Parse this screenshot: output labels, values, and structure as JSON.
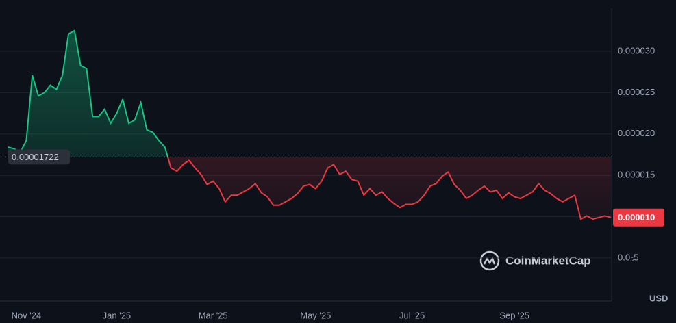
{
  "chart_data": {
    "type": "line",
    "categories": [
      null,
      null,
      null,
      "Nov '24",
      null,
      null,
      null,
      null,
      null,
      null,
      null,
      null,
      null,
      null,
      null,
      null,
      null,
      null,
      "Jan '25",
      null,
      null,
      null,
      null,
      null,
      null,
      null,
      null,
      null,
      null,
      null,
      null,
      null,
      null,
      null,
      "Mar '25",
      null,
      null,
      null,
      null,
      null,
      null,
      null,
      null,
      null,
      null,
      null,
      null,
      null,
      null,
      null,
      null,
      "May '25",
      null,
      null,
      null,
      null,
      null,
      null,
      null,
      null,
      null,
      null,
      null,
      null,
      null,
      null,
      null,
      "Jul '25",
      null,
      null,
      null,
      null,
      null,
      null,
      null,
      null,
      null,
      null,
      null,
      null,
      null,
      null,
      null,
      null,
      "Sep '25",
      null,
      null,
      null,
      null,
      null,
      null,
      null,
      null,
      null,
      null,
      null,
      null,
      null,
      null,
      null,
      null
    ],
    "values": [
      1.84e-05,
      1.82e-05,
      1.78e-05,
      1.92e-05,
      2.71e-05,
      2.46e-05,
      2.5e-05,
      2.59e-05,
      2.54e-05,
      2.71e-05,
      3.21e-05,
      3.25e-05,
      2.83e-05,
      2.79e-05,
      2.21e-05,
      2.21e-05,
      2.3e-05,
      2.13e-05,
      2.25e-05,
      2.42e-05,
      2.13e-05,
      2.17e-05,
      2.38e-05,
      2.05e-05,
      2.02e-05,
      1.92e-05,
      1.84e-05,
      1.59e-05,
      1.55e-05,
      1.63e-05,
      1.68e-05,
      1.59e-05,
      1.51e-05,
      1.39e-05,
      1.43e-05,
      1.34e-05,
      1.18e-05,
      1.26e-05,
      1.26e-05,
      1.3e-05,
      1.34e-05,
      1.4e-05,
      1.29e-05,
      1.24e-05,
      1.14e-05,
      1.14e-05,
      1.18e-05,
      1.22e-05,
      1.28e-05,
      1.37e-05,
      1.39e-05,
      1.34e-05,
      1.43e-05,
      1.59e-05,
      1.63e-05,
      1.51e-05,
      1.55e-05,
      1.45e-05,
      1.43e-05,
      1.26e-05,
      1.34e-05,
      1.26e-05,
      1.3e-05,
      1.22e-05,
      1.16e-05,
      1.11e-05,
      1.15e-05,
      1.15e-05,
      1.18e-05,
      1.26e-05,
      1.37e-05,
      1.4e-05,
      1.49e-05,
      1.54e-05,
      1.39e-05,
      1.32e-05,
      1.22e-05,
      1.26e-05,
      1.32e-05,
      1.37e-05,
      1.3e-05,
      1.32e-05,
      1.22e-05,
      1.29e-05,
      1.24e-05,
      1.22e-05,
      1.26e-05,
      1.3e-05,
      1.4e-05,
      1.32e-05,
      1.28e-05,
      1.22e-05,
      1.18e-05,
      1.22e-05,
      1.26e-05,
      9.7e-06,
      1.01e-05,
      9.7e-06,
      9.9e-06,
      1.01e-05,
      9.9e-06
    ],
    "up_color": "#16c784",
    "down_color": "#ea3943",
    "baseline": {
      "value": 1.722e-05,
      "label": "0.00001722"
    },
    "last_label": "0.000010",
    "ylim": [
      0,
      3.5e-05
    ],
    "yticks": [
      {
        "value": 5e-06,
        "label": "0.0₅5"
      },
      {
        "value": 1e-05,
        "label": "0.000010"
      },
      {
        "value": 1.5e-05,
        "label": "0.000015"
      },
      {
        "value": 2e-05,
        "label": "0.000020"
      },
      {
        "value": 2.5e-05,
        "label": "0.000025"
      },
      {
        "value": 3e-05,
        "label": "0.000030"
      }
    ],
    "ytick_labels_shown": [
      0,
      2,
      3,
      4,
      5
    ],
    "currency": "USD",
    "watermark": "CoinMarketCap",
    "grid": true
  }
}
